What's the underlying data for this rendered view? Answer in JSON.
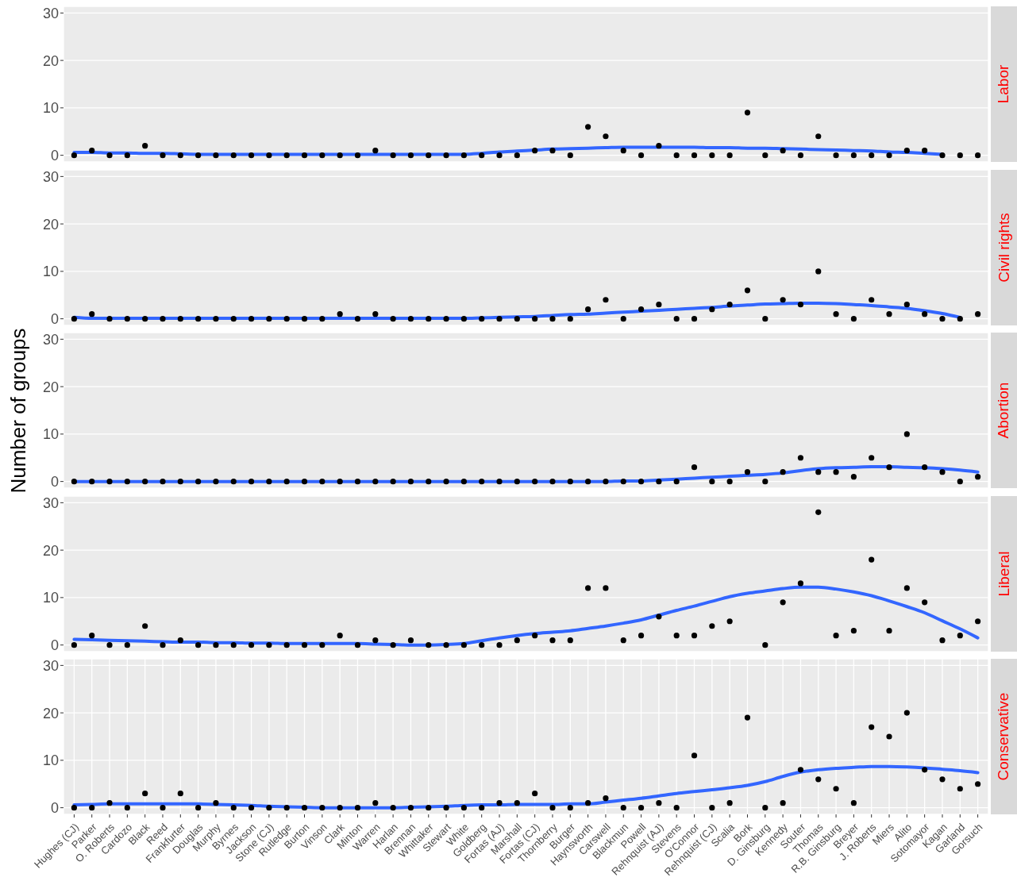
{
  "chart_data": [
    {
      "type": "scatter",
      "title": "Labor",
      "categories": [
        null,
        null,
        null,
        null,
        null,
        null,
        null,
        null,
        null,
        null,
        null,
        null,
        null,
        null,
        null,
        null,
        null,
        null,
        null,
        null,
        null,
        null,
        null,
        null,
        null,
        null,
        null,
        null,
        null,
        null,
        null,
        null,
        null,
        null,
        null,
        null,
        null,
        null,
        null,
        null,
        null,
        null,
        null,
        null,
        null,
        null,
        null,
        null,
        null,
        null,
        null,
        null
      ],
      "ylim": [
        -1.4,
        31.4
      ],
      "yticks": [
        0,
        10,
        20,
        30
      ],
      "grid": true,
      "tick_labels": "y",
      "series": [
        {
          "marker": "circle",
          "color": "#000000",
          "values": [
            0,
            1,
            0,
            0,
            2,
            0,
            0,
            0,
            0,
            0,
            0,
            0,
            0,
            0,
            0,
            0,
            0,
            1,
            0,
            0,
            0,
            0,
            0,
            0,
            0,
            0,
            1,
            1,
            0,
            6,
            4,
            1,
            0,
            2,
            0,
            0,
            0,
            0,
            9,
            0,
            1,
            0,
            4,
            0,
            0,
            0,
            0,
            1,
            1,
            0,
            0,
            0
          ]
        },
        {
          "type": "line",
          "color": "#3366ff",
          "values": [
            0.6,
            0.6,
            0.5,
            0.5,
            0.4,
            0.4,
            0.3,
            0.2,
            0.2,
            0.2,
            0.2,
            0.2,
            0.2,
            0.2,
            0.2,
            0.2,
            0.2,
            0.2,
            0.2,
            0.2,
            0.2,
            0.2,
            0.2,
            0.4,
            0.7,
            0.9,
            1.1,
            1.3,
            1.4,
            1.5,
            1.6,
            1.7,
            1.7,
            1.7,
            1.7,
            1.7,
            1.6,
            1.6,
            1.5,
            1.5,
            1.4,
            1.3,
            1.2,
            1.1,
            1.0,
            0.9,
            0.7,
            0.6,
            0.4,
            0.2,
            null,
            null
          ]
        }
      ]
    },
    {
      "type": "scatter",
      "title": "Civil rights",
      "categories": [
        null,
        null,
        null,
        null,
        null,
        null,
        null,
        null,
        null,
        null,
        null,
        null,
        null,
        null,
        null,
        null,
        null,
        null,
        null,
        null,
        null,
        null,
        null,
        null,
        null,
        null,
        null,
        null,
        null,
        null,
        null,
        null,
        null,
        null,
        null,
        null,
        null,
        null,
        null,
        null,
        null,
        null,
        null,
        null,
        null,
        null,
        null,
        null,
        null,
        null,
        null,
        null
      ],
      "ylim": [
        -1.4,
        31.4
      ],
      "yticks": [
        0,
        10,
        20,
        30
      ],
      "grid": true,
      "tick_labels": "y",
      "series": [
        {
          "marker": "circle",
          "color": "#000000",
          "values": [
            0,
            1,
            0,
            0,
            0,
            0,
            0,
            0,
            0,
            0,
            0,
            0,
            0,
            0,
            0,
            1,
            0,
            1,
            0,
            0,
            0,
            0,
            0,
            0,
            0,
            0,
            0,
            0,
            0,
            2,
            4,
            0,
            2,
            3,
            0,
            0,
            2,
            3,
            6,
            0,
            4,
            3,
            10,
            1,
            0,
            4,
            1,
            3,
            1,
            0,
            0,
            1
          ]
        },
        {
          "type": "line",
          "color": "#3366ff",
          "values": [
            0.3,
            0.1,
            0.1,
            0.1,
            0.1,
            0.1,
            0.1,
            0.1,
            0.1,
            0.1,
            0.1,
            0.1,
            0.1,
            0.1,
            0.1,
            0.1,
            0.1,
            0.1,
            0.1,
            0.1,
            0.1,
            0.1,
            0.1,
            0.2,
            0.3,
            0.4,
            0.5,
            0.7,
            0.9,
            1.0,
            1.2,
            1.4,
            1.6,
            1.8,
            2.0,
            2.2,
            2.4,
            2.7,
            2.9,
            3.1,
            3.2,
            3.3,
            3.3,
            3.2,
            3.0,
            2.8,
            2.5,
            2.2,
            1.7,
            1.1,
            0.3,
            null
          ]
        }
      ]
    },
    {
      "type": "scatter",
      "title": "Abortion",
      "ylabel": "Number of groups",
      "categories": [
        null,
        null,
        null,
        null,
        null,
        null,
        null,
        null,
        null,
        null,
        null,
        null,
        null,
        null,
        null,
        null,
        null,
        null,
        null,
        null,
        null,
        null,
        null,
        null,
        null,
        null,
        null,
        null,
        null,
        null,
        null,
        null,
        null,
        null,
        null,
        null,
        null,
        null,
        null,
        null,
        null,
        null,
        null,
        null,
        null,
        null,
        null,
        null,
        null,
        null,
        null,
        null
      ],
      "ylim": [
        -1.4,
        31.4
      ],
      "yticks": [
        0,
        10,
        20,
        30
      ],
      "grid": true,
      "tick_labels": "y",
      "series": [
        {
          "marker": "circle",
          "color": "#000000",
          "values": [
            0,
            0,
            0,
            0,
            0,
            0,
            0,
            0,
            0,
            0,
            0,
            0,
            0,
            0,
            0,
            0,
            0,
            0,
            0,
            0,
            0,
            0,
            0,
            0,
            0,
            0,
            0,
            0,
            0,
            0,
            0,
            0,
            0,
            0,
            0,
            3,
            0,
            0,
            2,
            0,
            2,
            5,
            2,
            2,
            1,
            5,
            3,
            10,
            3,
            2,
            0,
            1
          ]
        },
        {
          "type": "line",
          "color": "#3366ff",
          "values": [
            0,
            0,
            0,
            0,
            0,
            0,
            0,
            0,
            0,
            0,
            0,
            0,
            0,
            0,
            0,
            0,
            0,
            0,
            0,
            0,
            0,
            0,
            0,
            0,
            0,
            0,
            0,
            0,
            0,
            0,
            0,
            0.1,
            0.1,
            0.3,
            0.5,
            0.7,
            0.9,
            1.1,
            1.3,
            1.5,
            1.8,
            2.3,
            2.7,
            2.9,
            3.0,
            3.1,
            3.1,
            3.0,
            2.9,
            2.7,
            2.4,
            2.0
          ]
        }
      ]
    },
    {
      "type": "scatter",
      "title": "Liberal",
      "categories": [
        null,
        null,
        null,
        null,
        null,
        null,
        null,
        null,
        null,
        null,
        null,
        null,
        null,
        null,
        null,
        null,
        null,
        null,
        null,
        null,
        null,
        null,
        null,
        null,
        null,
        null,
        null,
        null,
        null,
        null,
        null,
        null,
        null,
        null,
        null,
        null,
        null,
        null,
        null,
        null,
        null,
        null,
        null,
        null,
        null,
        null,
        null,
        null,
        null,
        null,
        null,
        null
      ],
      "ylim": [
        -1.4,
        31.4
      ],
      "yticks": [
        0,
        10,
        20,
        30
      ],
      "grid": true,
      "tick_labels": "y",
      "series": [
        {
          "marker": "circle",
          "color": "#000000",
          "values": [
            0,
            2,
            0,
            0,
            4,
            0,
            1,
            0,
            0,
            0,
            0,
            0,
            0,
            0,
            0,
            2,
            0,
            1,
            0,
            1,
            0,
            0,
            0,
            0,
            0,
            1,
            2,
            1,
            1,
            12,
            12,
            1,
            2,
            6,
            2,
            2,
            4,
            5,
            null,
            0,
            9,
            13,
            28,
            2,
            3,
            18,
            3,
            12,
            9,
            1,
            2,
            5
          ]
        },
        {
          "type": "line",
          "color": "#3366ff",
          "values": [
            1.2,
            1.1,
            1.0,
            0.9,
            0.8,
            0.7,
            0.6,
            0.6,
            0.5,
            0.5,
            0.4,
            0.4,
            0.3,
            0.3,
            0.3,
            0.3,
            0.3,
            0.2,
            0.1,
            0,
            0,
            0.1,
            0.3,
            0.9,
            1.5,
            2.0,
            2.4,
            2.7,
            3.0,
            3.5,
            4.0,
            4.6,
            5.3,
            6.3,
            7.3,
            8.2,
            9.2,
            10.2,
            10.9,
            11.4,
            11.9,
            12.2,
            12.2,
            11.8,
            11.2,
            10.4,
            9.3,
            8.1,
            6.8,
            5.1,
            3.4,
            1.5
          ]
        }
      ]
    },
    {
      "type": "scatter",
      "title": "Conservative",
      "categories": [
        "Hughes (CJ)",
        "Parker",
        "O. Roberts",
        "Cardozo",
        "Black",
        "Reed",
        "Frankfurter",
        "Douglas",
        "Murphy",
        "Byrnes",
        "Jackson",
        "Stone (CJ)",
        "Rutledge",
        "Burton",
        "Vinson",
        "Clark",
        "Minton",
        "Warren",
        "Harlan",
        "Brennan",
        "Whittaker",
        "Stewart",
        "White",
        "Goldberg",
        "Fortas (AJ)",
        "Marshall",
        "Fortas (CJ)",
        "Thornberry",
        "Burger",
        "Haynsworth",
        "Carswell",
        "Blackmun",
        "Powell",
        "Rehnquist (AJ)",
        "Stevens",
        "O'Connor",
        "Rehnquist (CJ)",
        "Scalia",
        "Bork",
        "D. Ginsburg",
        "Kennedy",
        "Souter",
        "Thomas",
        "R.B. Ginsburg",
        "Breyer",
        "J. Roberts",
        "Miers",
        "Alito",
        "Sotomayor",
        "Kagan",
        "Garland",
        "Gorsuch"
      ],
      "ylim": [
        -1.4,
        31.4
      ],
      "yticks": [
        0,
        10,
        20,
        30
      ],
      "grid": true,
      "series": [
        {
          "marker": "circle",
          "color": "#000000",
          "values": [
            0,
            0,
            1,
            0,
            3,
            0,
            3,
            0,
            1,
            0,
            0,
            0,
            0,
            0,
            0,
            0,
            0,
            1,
            0,
            0,
            0,
            0,
            0,
            0,
            1,
            1,
            3,
            0,
            0,
            1,
            2,
            0,
            0,
            1,
            0,
            11,
            0,
            1,
            19,
            0,
            1,
            8,
            6,
            4,
            1,
            17,
            15,
            20,
            8,
            6,
            4,
            5
          ]
        },
        {
          "type": "line",
          "color": "#3366ff",
          "values": [
            0.6,
            0.7,
            0.8,
            0.8,
            0.8,
            0.8,
            0.8,
            0.8,
            0.7,
            0.6,
            0.5,
            0.3,
            0.2,
            0.1,
            0,
            0,
            0,
            0,
            0,
            0.1,
            0.2,
            0.3,
            0.5,
            0.6,
            0.6,
            0.7,
            0.7,
            0.7,
            0.8,
            0.8,
            1.2,
            1.6,
            2.0,
            2.5,
            3.0,
            3.4,
            3.8,
            4.2,
            4.7,
            5.5,
            6.6,
            7.5,
            8.0,
            8.3,
            8.5,
            8.7,
            8.7,
            8.6,
            8.4,
            8.1,
            7.8,
            7.4
          ]
        }
      ]
    }
  ]
}
